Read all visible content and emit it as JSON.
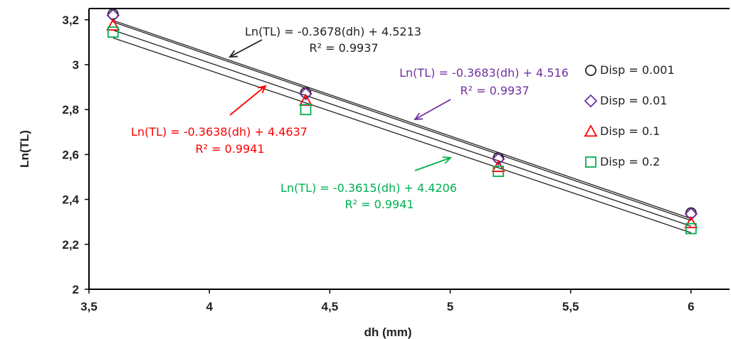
{
  "chart_data": {
    "type": "scatter",
    "xlabel": "dh (mm)",
    "ylabel": "Ln(TL)",
    "xlim": [
      3.5,
      6.16
    ],
    "ylim": [
      2,
      3.25
    ],
    "xticks": [
      3.5,
      4,
      4.5,
      5,
      5.5,
      6
    ],
    "yticks": [
      2,
      2.2,
      2.4,
      2.6,
      2.8,
      3,
      3.2
    ],
    "xtick_labels": [
      "3,5",
      "4",
      "4,5",
      "5",
      "5,5",
      "6"
    ],
    "ytick_labels": [
      "2",
      "2,2",
      "2,4",
      "2,6",
      "2,8",
      "3",
      "3,2"
    ],
    "grid": false,
    "legend_position": "right",
    "x": [
      3.6,
      4.4,
      5.2,
      6.0
    ],
    "series": [
      {
        "name": "Disp = 0.001",
        "marker": "circle",
        "color": "#222222",
        "values": [
          3.225,
          2.875,
          2.585,
          2.34
        ],
        "trendline": {
          "slope": -0.3678,
          "intercept": 4.5213,
          "color": "#222222"
        },
        "equation": "Ln(TL) = -0.3678(dh) + 4.5213",
        "r2": "R² = 0.9937",
        "annotation_color": "#222222"
      },
      {
        "name": "Disp = 0.01",
        "marker": "diamond",
        "color": "#7030a0",
        "values": [
          3.22,
          2.87,
          2.58,
          2.335
        ],
        "trendline": {
          "slope": -0.3683,
          "intercept": 4.516,
          "color": "#222222"
        },
        "equation": "Ln(TL) = -0.3683(dh) + 4.516",
        "r2": "R² = 0.9937",
        "annotation_color": "#7030a0"
      },
      {
        "name": "Disp = 0.1",
        "marker": "triangle",
        "color": "#ff0000",
        "values": [
          3.175,
          2.84,
          2.545,
          2.295
        ],
        "trendline": {
          "slope": -0.3638,
          "intercept": 4.4637,
          "color": "#222222"
        },
        "equation": "Ln(TL) = -0.3638(dh) + 4.4637",
        "r2": "R² = 0.9941",
        "annotation_color": "#ff0000"
      },
      {
        "name": "Disp = 0.2",
        "marker": "square",
        "color": "#00b050",
        "values": [
          3.145,
          2.8,
          2.525,
          2.27
        ],
        "trendline": {
          "slope": -0.3615,
          "intercept": 4.4206,
          "color": "#222222"
        },
        "equation": "Ln(TL) = -0.3615(dh) + 4.4206",
        "r2": "R² = 0.9941",
        "annotation_color": "#00b050"
      }
    ]
  }
}
